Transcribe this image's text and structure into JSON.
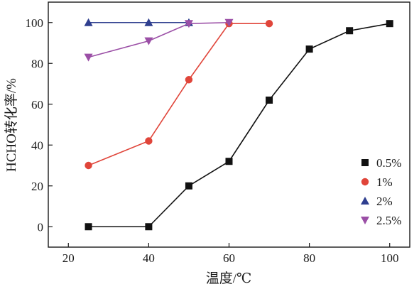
{
  "chart_data": {
    "type": "line",
    "title": "",
    "xlabel": "温度/℃",
    "ylabel": "HCHO转化率/%",
    "xlim": [
      15,
      105
    ],
    "ylim": [
      -10,
      110
    ],
    "xticks": [
      20,
      40,
      60,
      80,
      100
    ],
    "yticks": [
      0,
      20,
      40,
      60,
      80,
      100
    ],
    "grid": false,
    "legend_position": "right",
    "series": [
      {
        "name": "0.5%",
        "marker": "square",
        "color": "#111111",
        "points": [
          {
            "x": 25,
            "y": 0
          },
          {
            "x": 40,
            "y": 0
          },
          {
            "x": 50,
            "y": 20
          },
          {
            "x": 60,
            "y": 32
          },
          {
            "x": 70,
            "y": 62
          },
          {
            "x": 80,
            "y": 87
          },
          {
            "x": 90,
            "y": 96
          },
          {
            "x": 100,
            "y": 99.5
          }
        ]
      },
      {
        "name": "1%",
        "marker": "circle",
        "color": "#e0453a",
        "points": [
          {
            "x": 25,
            "y": 30
          },
          {
            "x": 40,
            "y": 42
          },
          {
            "x": 50,
            "y": 72
          },
          {
            "x": 60,
            "y": 99.5
          },
          {
            "x": 70,
            "y": 99.5
          }
        ]
      },
      {
        "name": "2%",
        "marker": "triangle-up",
        "color": "#2f3f8f",
        "points": [
          {
            "x": 25,
            "y": 100
          },
          {
            "x": 40,
            "y": 100
          },
          {
            "x": 50,
            "y": 100
          }
        ]
      },
      {
        "name": "2.5%",
        "marker": "triangle-down",
        "color": "#9b4fa6",
        "points": [
          {
            "x": 25,
            "y": 83
          },
          {
            "x": 40,
            "y": 91
          },
          {
            "x": 50,
            "y": 99.5
          },
          {
            "x": 60,
            "y": 100
          }
        ]
      }
    ]
  }
}
